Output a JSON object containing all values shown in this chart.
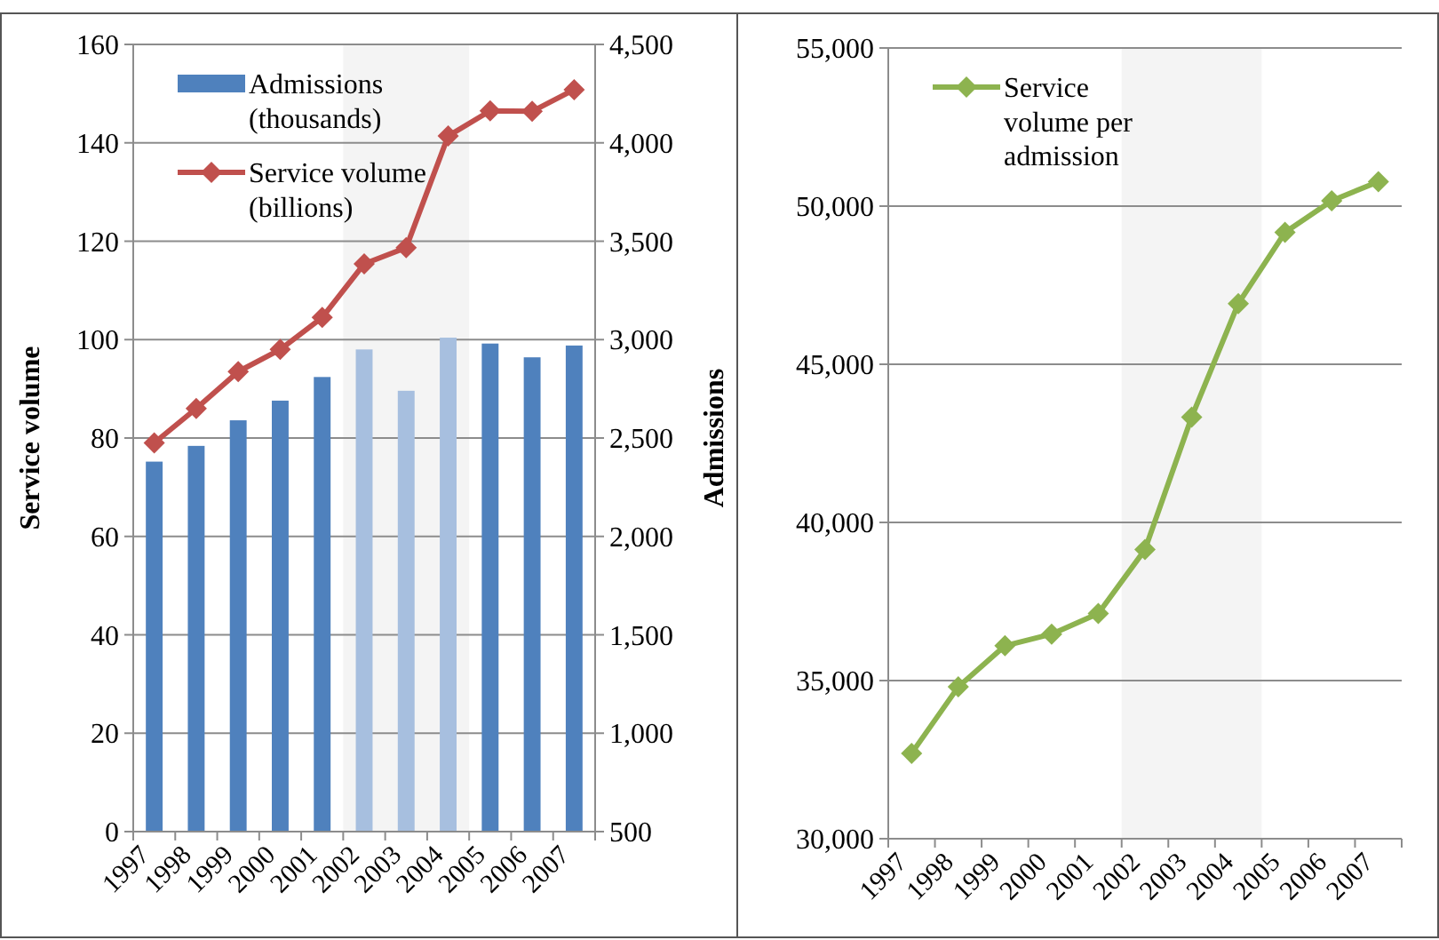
{
  "chart_data": [
    {
      "type": "bar",
      "ylabel": "Service volume",
      "y2label": "Admissions",
      "categories": [
        "1997",
        "1998",
        "1999",
        "2000",
        "2001",
        "2002",
        "2003",
        "2004",
        "2005",
        "2006",
        "2007"
      ],
      "series": [
        {
          "name": "Admissions (thousands)",
          "axis": "y2",
          "color": "#4f81bd",
          "colors": [
            "#4f81bd",
            "#4f81bd",
            "#4f81bd",
            "#4f81bd",
            "#4f81bd",
            "#a7bfdf",
            "#a7bfdf",
            "#a7bfdf",
            "#4f81bd",
            "#4f81bd",
            "#4f81bd"
          ],
          "values": [
            2380,
            2460,
            2590,
            2690,
            2810,
            2950,
            2740,
            3010,
            2980,
            2910,
            2970
          ]
        },
        {
          "name": "Service volume (billions)",
          "type": "line",
          "axis": "y",
          "color": "#c0504d",
          "values": [
            79,
            86,
            93.5,
            98,
            104.5,
            115.4,
            118.7,
            141.4,
            146.5,
            146.4,
            150.8
          ]
        }
      ],
      "ylim": [
        0,
        160
      ],
      "yticks": [
        0,
        20,
        40,
        60,
        80,
        100,
        120,
        140,
        160
      ],
      "y2lim": [
        500,
        4500
      ],
      "y2ticks": [
        {
          "value": 500,
          "label": "500"
        },
        {
          "value": 1000,
          "label": "1,000"
        },
        {
          "value": 1500,
          "label": "1,500"
        },
        {
          "value": 2000,
          "label": "2,000"
        },
        {
          "value": 2500,
          "label": "2,500"
        },
        {
          "value": 3000,
          "label": "3,000"
        },
        {
          "value": 3500,
          "label": "3,500"
        },
        {
          "value": 4000,
          "label": "4,000"
        },
        {
          "value": 4500,
          "label": "4,500"
        }
      ],
      "bands": [
        {
          "axis": "x",
          "from": "2002",
          "to": "2004",
          "color": "#f4f4f4"
        }
      ],
      "grid": "y",
      "legend": "top left",
      "marker": "diamond"
    },
    {
      "type": "line",
      "categories": [
        "1997",
        "1998",
        "1999",
        "2000",
        "2001",
        "2002",
        "2003",
        "2004",
        "2005",
        "2006",
        "2007"
      ],
      "series": [
        {
          "name": "Service volume per admission",
          "color": "#8db34f",
          "values": [
            32700,
            34800,
            36100,
            36470,
            37120,
            39140,
            43330,
            46920,
            49170,
            50170,
            50770
          ]
        }
      ],
      "ylim": [
        30000,
        55000
      ],
      "yticks": [
        {
          "value": 30000,
          "label": "30,000"
        },
        {
          "value": 35000,
          "label": "35,000"
        },
        {
          "value": 40000,
          "label": "40,000"
        },
        {
          "value": 45000,
          "label": "45,000"
        },
        {
          "value": 50000,
          "label": "50,000"
        },
        {
          "value": 55000,
          "label": "55,000"
        }
      ],
      "bands": [
        {
          "axis": "x",
          "from": "2002",
          "to": "2004",
          "color": "#f4f4f4"
        }
      ],
      "grid": "y",
      "legend": "top left",
      "marker": "diamond"
    }
  ]
}
